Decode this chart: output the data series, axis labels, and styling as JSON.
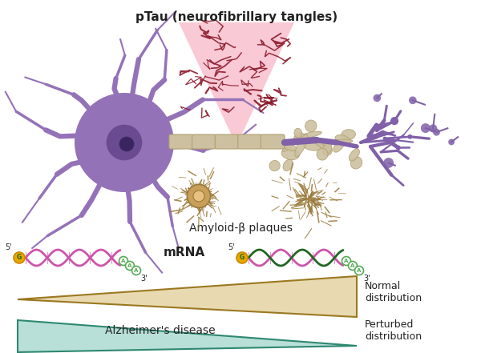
{
  "title": "pTau (neurofibrillary tangles)",
  "amyloid_label": "Amyloid-β plaques",
  "mrna_label": "mRNA",
  "normal_dist_label": "Normal\ndistribution",
  "perturbed_dist_label": "Perturbed\ndistribution",
  "alzheimer_label": "Alzheimer's disease",
  "bg_color": "#ffffff",
  "neuron_body_color": "#9472b8",
  "neuron_nucleus_color": "#6a4a90",
  "neuron_nucleus_inner": "#3a2560",
  "axon_color": "#ccc0a0",
  "axon_edge": "#b0a070",
  "dendrite_purple": "#8060a8",
  "ptau_pink_fill": "#f8b8c8",
  "ptau_tangle_color": "#8b1a2a",
  "plaque_color": "#9b7a3a",
  "plaque_ring_outer": "#c8a05a",
  "plaque_ring_inner": "#e8c080",
  "mrna_pink_color": "#cc55aa",
  "mrna_green_color": "#226622",
  "mrna_cap_color": "#e8a800",
  "mrna_poly_color": "#55aa55",
  "normal_wedge_fill": "#e8d9b0",
  "normal_wedge_edge": "#9b7820",
  "perturbed_wedge_fill": "#b8e0d8",
  "perturbed_wedge_edge": "#2d8870",
  "text_color": "#222222"
}
